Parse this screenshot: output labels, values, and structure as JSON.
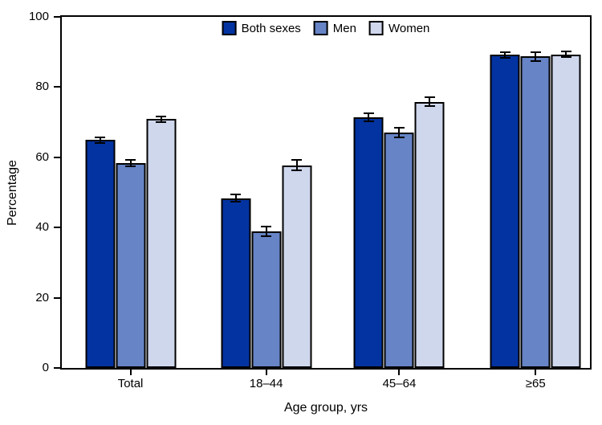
{
  "chart_data": {
    "type": "bar",
    "title": "",
    "categories": [
      "Total",
      "18–44",
      "45–64",
      "≥65"
    ],
    "series": [
      {
        "name": "Both sexes",
        "color": "#0233a0",
        "values": [
          64.9,
          48.4,
          71.4,
          89.2
        ],
        "errors": [
          1.0,
          1.3,
          1.3,
          1.0
        ]
      },
      {
        "name": "Men",
        "color": "#6684c6",
        "values": [
          58.4,
          39.0,
          67.0,
          88.7
        ],
        "errors": [
          1.2,
          1.6,
          1.6,
          1.4
        ]
      },
      {
        "name": "Women",
        "color": "#cfd7ed",
        "values": [
          70.9,
          57.7,
          75.8,
          89.3
        ],
        "errors": [
          1.0,
          1.7,
          1.5,
          1.0
        ]
      }
    ],
    "xlabel": "Age group, yrs",
    "ylabel": "Percentage",
    "ylim": [
      0,
      100
    ],
    "yticks": [
      0,
      20,
      40,
      60,
      80,
      100
    ],
    "grid": false,
    "legend_position": "top-center",
    "error_bars": true,
    "bar_border_color": "#000000",
    "axis_color": "#000000"
  }
}
